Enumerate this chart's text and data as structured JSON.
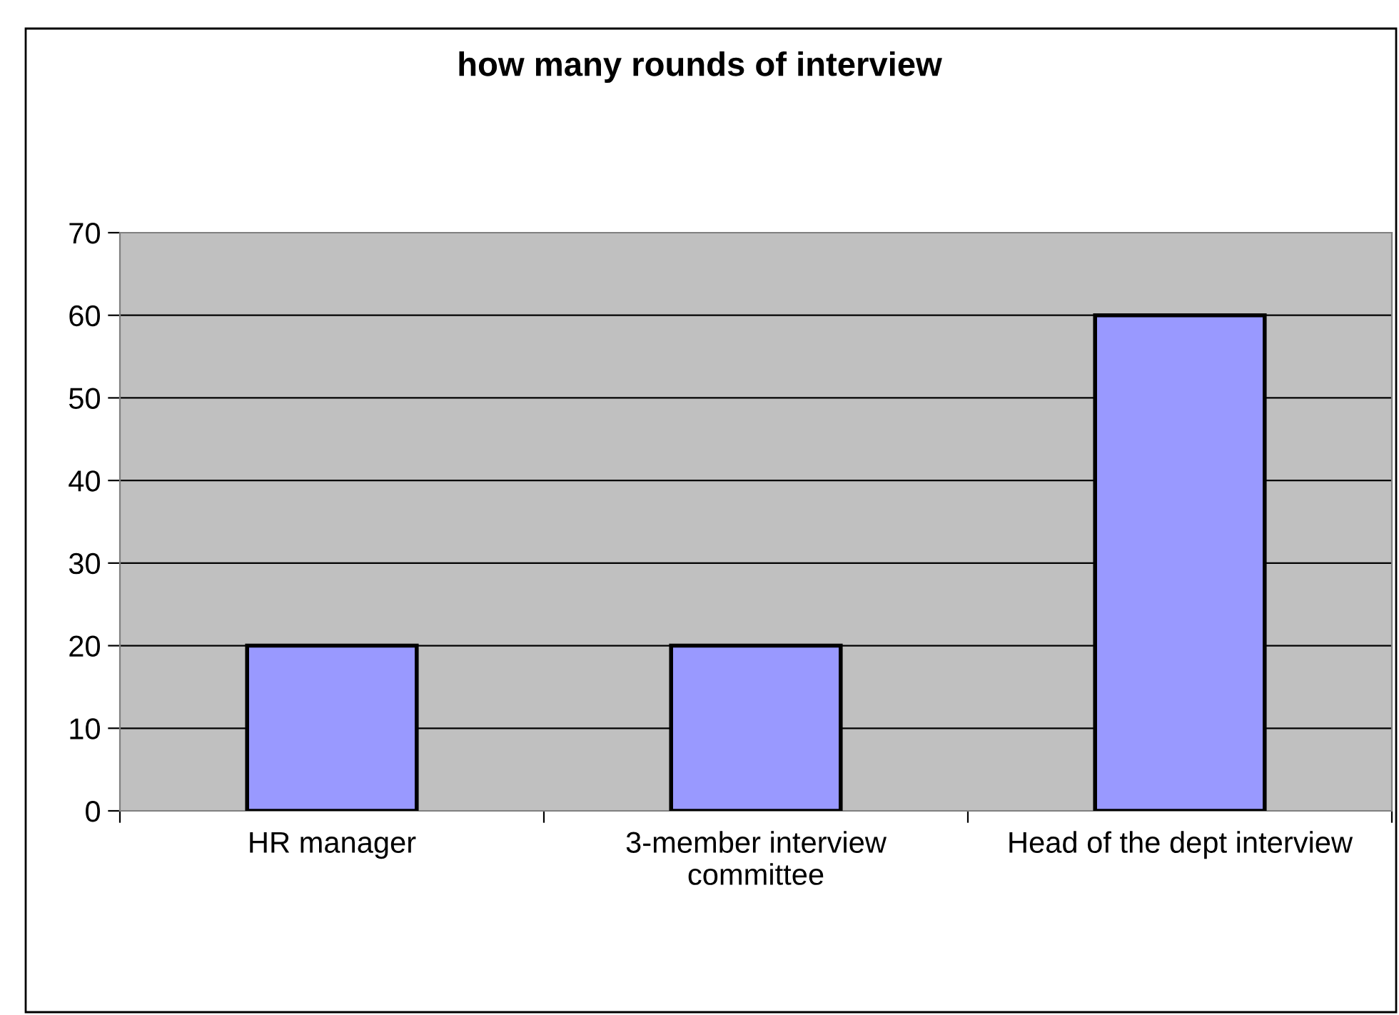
{
  "chart_data": {
    "type": "bar",
    "title": "how many rounds of interview",
    "categories": [
      "HR manager",
      "3-member interview committee",
      "Head of the dept interview"
    ],
    "values": [
      20,
      20,
      60
    ],
    "color": "#9999ff",
    "ylim": [
      0,
      70
    ],
    "yticks": [
      0,
      10,
      20,
      30,
      40,
      50,
      60,
      70
    ],
    "grid": "y",
    "legend": false
  }
}
